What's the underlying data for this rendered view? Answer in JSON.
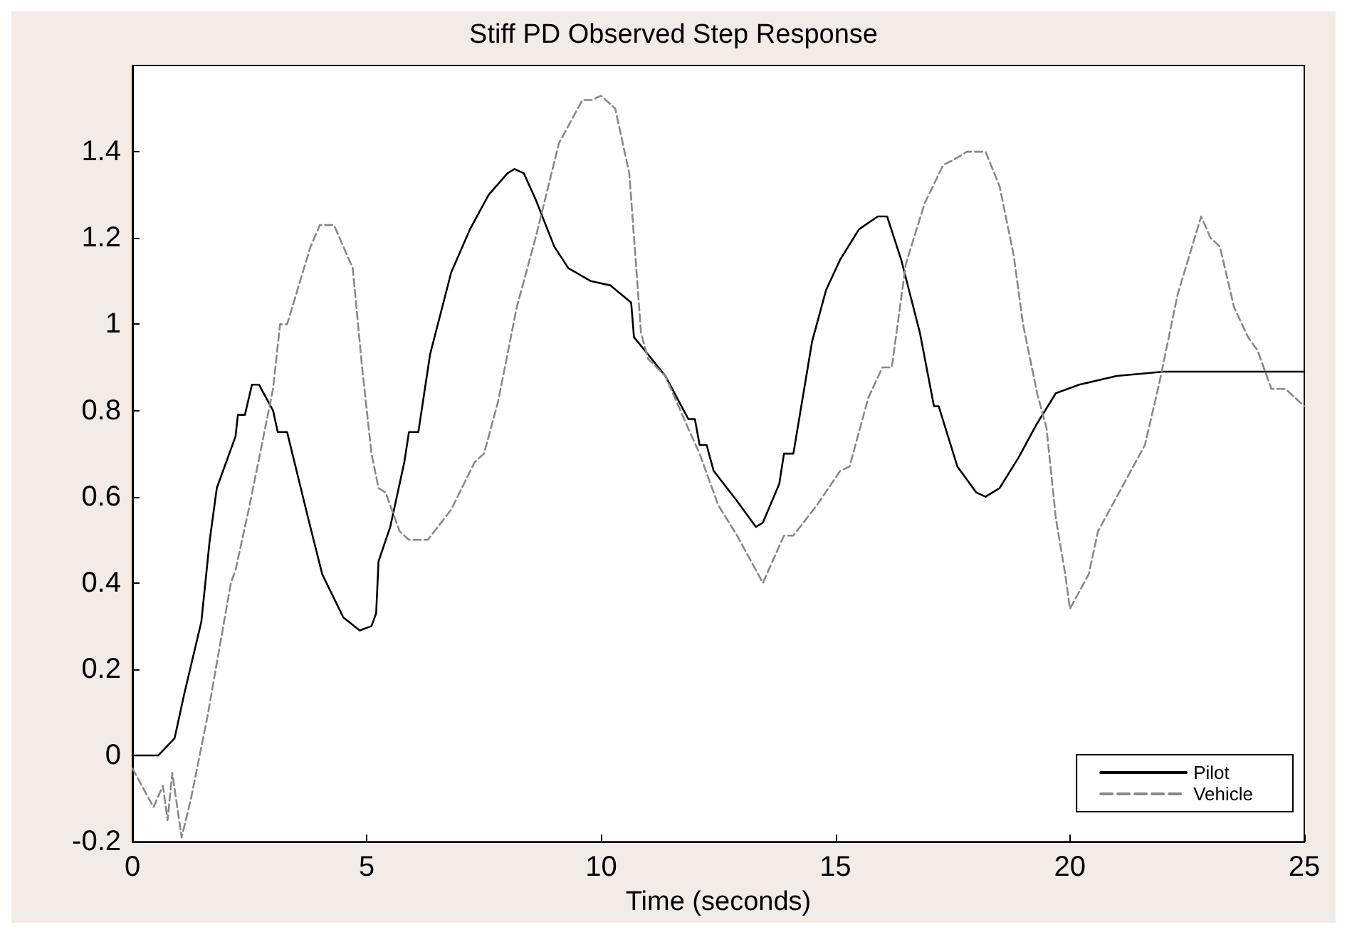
{
  "chart_data": {
    "type": "line",
    "title": "Stiff PD Observed Step Response",
    "xlabel": "Time (seconds)",
    "xlim": [
      0,
      25
    ],
    "xticks": [
      0,
      5,
      10,
      15,
      20,
      25
    ],
    "ylim": [
      -0.2,
      1.6
    ],
    "yticks": [
      -0.2,
      0,
      0.2,
      0.4,
      0.6,
      0.8,
      1,
      1.2,
      1.4
    ],
    "grid": false,
    "legend": "bottom right",
    "marker": "none",
    "series": [
      {
        "name": "Pilot",
        "color": "#000000",
        "line_style": "solid",
        "x": [
          0,
          0.55,
          0.9,
          1.1,
          1.47,
          1.65,
          1.8,
          2.2,
          2.25,
          2.4,
          2.55,
          2.7,
          3.0,
          3.1,
          3.3,
          3.75,
          4.05,
          4.5,
          4.85,
          5.1,
          5.2,
          5.25,
          5.5,
          5.8,
          5.9,
          6.1,
          6.35,
          6.8,
          7.2,
          7.6,
          8.0,
          8.15,
          8.35,
          8.6,
          9.0,
          9.3,
          9.78,
          10.2,
          10.64,
          10.7,
          11.0,
          11.37,
          11.86,
          12.0,
          12.1,
          12.25,
          12.4,
          12.9,
          13.3,
          13.45,
          13.8,
          13.9,
          14.1,
          14.5,
          14.8,
          15.1,
          15.5,
          15.9,
          16.1,
          16.4,
          16.8,
          17.1,
          17.2,
          17.6,
          18.0,
          18.2,
          18.5,
          18.9,
          19.3,
          19.7,
          20.2,
          21,
          22,
          23,
          25
        ],
        "values": [
          0,
          0,
          0.04,
          0.14,
          0.31,
          0.5,
          0.62,
          0.74,
          0.79,
          0.79,
          0.86,
          0.86,
          0.8,
          0.75,
          0.75,
          0.55,
          0.42,
          0.32,
          0.29,
          0.3,
          0.33,
          0.45,
          0.53,
          0.68,
          0.75,
          0.75,
          0.93,
          1.12,
          1.22,
          1.3,
          1.35,
          1.36,
          1.35,
          1.29,
          1.18,
          1.13,
          1.1,
          1.09,
          1.05,
          0.97,
          0.93,
          0.88,
          0.78,
          0.78,
          0.72,
          0.72,
          0.66,
          0.59,
          0.53,
          0.54,
          0.63,
          0.7,
          0.7,
          0.96,
          1.08,
          1.15,
          1.22,
          1.25,
          1.25,
          1.15,
          0.98,
          0.81,
          0.81,
          0.67,
          0.61,
          0.6,
          0.62,
          0.69,
          0.77,
          0.84,
          0.86,
          0.88,
          0.89,
          0.89,
          0.89
        ]
      },
      {
        "name": "Vehicle",
        "color": "#888888",
        "line_style": "dashed",
        "x": [
          0,
          0.25,
          0.45,
          0.65,
          0.75,
          0.85,
          1.05,
          1.25,
          1.6,
          2.1,
          2.2,
          2.5,
          3.0,
          3.15,
          3.3,
          3.8,
          4.0,
          4.3,
          4.7,
          4.9,
          5.1,
          5.25,
          5.4,
          5.7,
          5.9,
          6.3,
          6.8,
          7.3,
          7.5,
          7.8,
          8.2,
          8.6,
          9.1,
          9.6,
          9.8,
          10.0,
          10.3,
          10.6,
          10.85,
          11.0,
          11.37,
          11.85,
          12.1,
          12.5,
          12.9,
          13.2,
          13.45,
          13.9,
          14.1,
          14.6,
          15.1,
          15.3,
          15.7,
          16.0,
          16.2,
          16.5,
          16.9,
          17.3,
          17.5,
          17.8,
          18.2,
          18.5,
          18.8,
          19.0,
          19.3,
          19.5,
          19.7,
          19.9,
          20.0,
          20.2,
          20.4,
          20.6,
          20.8,
          21.1,
          21.6,
          21.9,
          22.3,
          22.8,
          23.0,
          23.2,
          23.5,
          23.8,
          24.0,
          24.3,
          24.6,
          25
        ],
        "values": [
          -0.03,
          -0.08,
          -0.12,
          -0.07,
          -0.15,
          -0.04,
          -0.19,
          -0.1,
          0.09,
          0.4,
          0.43,
          0.58,
          0.85,
          1.0,
          1.0,
          1.18,
          1.23,
          1.23,
          1.13,
          0.9,
          0.7,
          0.62,
          0.61,
          0.52,
          0.5,
          0.5,
          0.57,
          0.68,
          0.7,
          0.82,
          1.04,
          1.2,
          1.42,
          1.52,
          1.52,
          1.53,
          1.5,
          1.35,
          0.98,
          0.92,
          0.88,
          0.76,
          0.7,
          0.58,
          0.51,
          0.45,
          0.4,
          0.51,
          0.51,
          0.58,
          0.66,
          0.67,
          0.83,
          0.9,
          0.9,
          1.14,
          1.28,
          1.37,
          1.38,
          1.4,
          1.4,
          1.32,
          1.16,
          1.0,
          0.84,
          0.76,
          0.55,
          0.42,
          0.34,
          0.38,
          0.42,
          0.52,
          0.56,
          0.62,
          0.72,
          0.86,
          1.07,
          1.25,
          1.2,
          1.18,
          1.04,
          0.97,
          0.94,
          0.85,
          0.85,
          0.81
        ]
      }
    ]
  }
}
